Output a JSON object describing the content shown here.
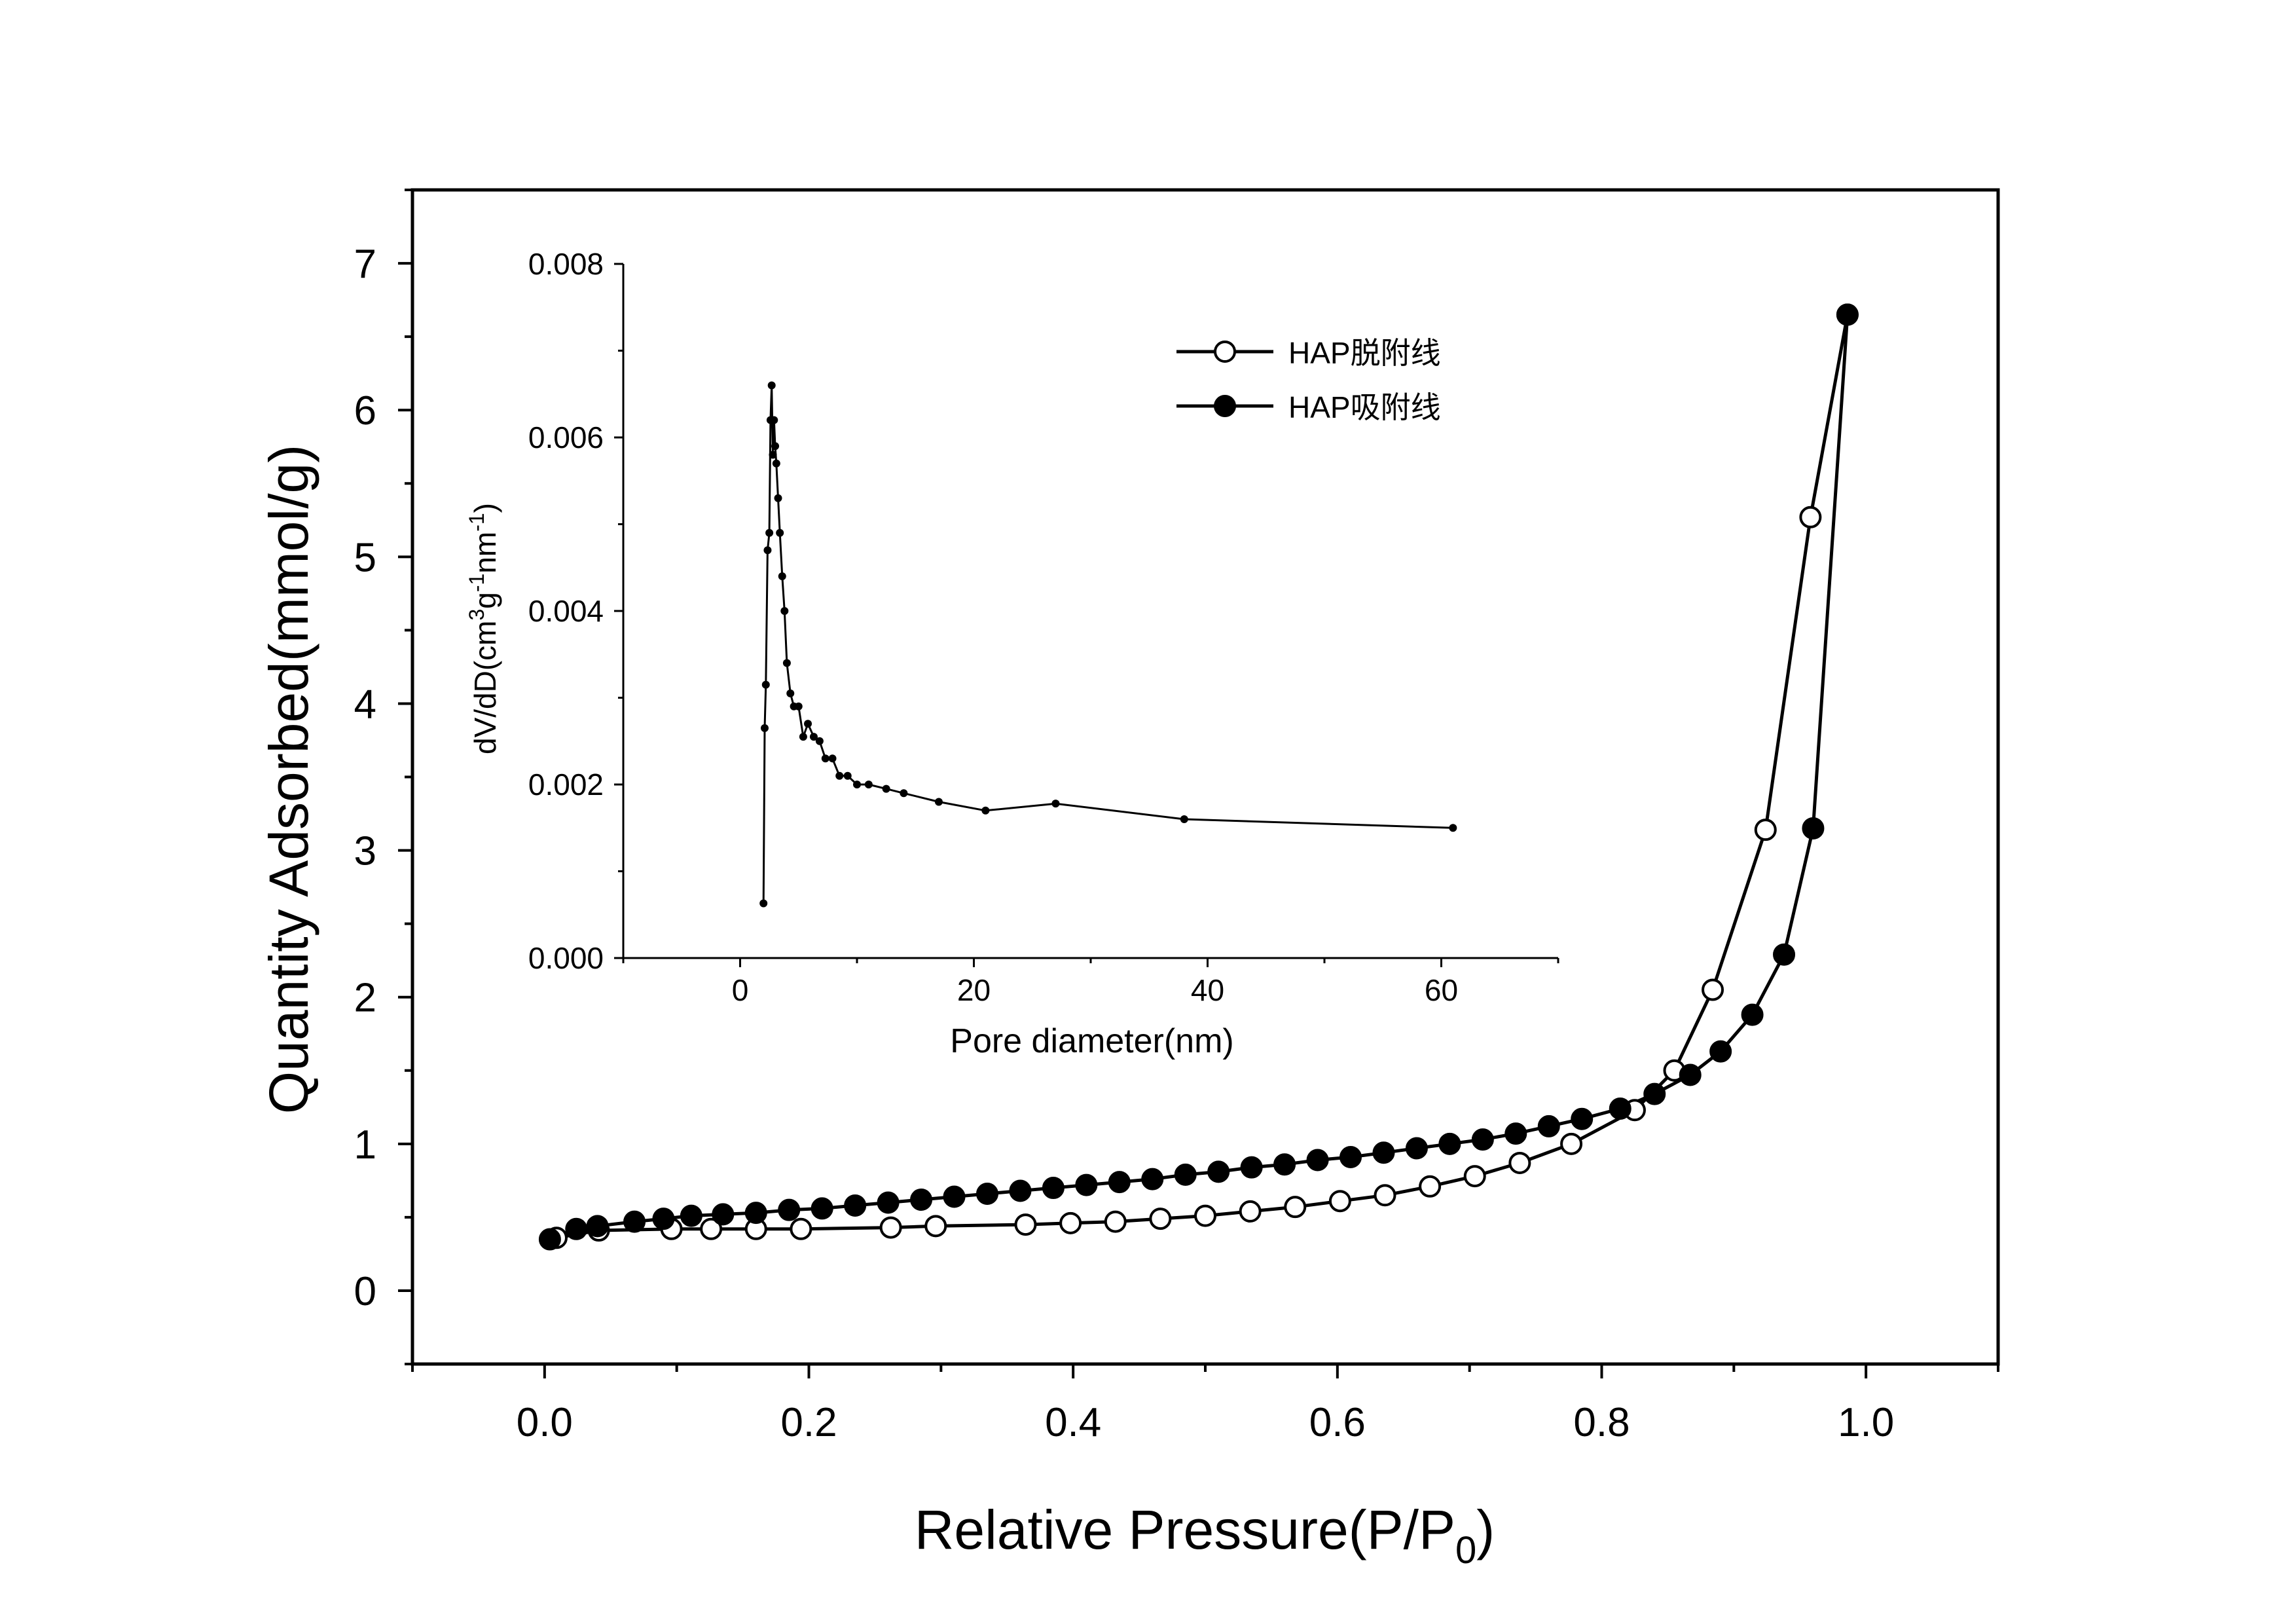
{
  "chart_data": [
    {
      "type": "scatter",
      "xlabel": "Relative Pressure(P/P",
      "xlabel_sub": "0",
      "xlabel_tail": ")",
      "ylabel": "Quantity Adsorbed(mmol/g)",
      "xlim": [
        -0.1,
        1.1
      ],
      "ylim": [
        -0.5,
        7.5
      ],
      "xticks": [
        0.0,
        0.2,
        0.4,
        0.6,
        0.8,
        1.0
      ],
      "xtick_labels": [
        "0.0",
        "0.2",
        "0.4",
        "0.6",
        "0.8",
        "1.0"
      ],
      "yticks": [
        0,
        1,
        2,
        3,
        4,
        5,
        6,
        7
      ],
      "ytick_labels": [
        "0",
        "1",
        "2",
        "3",
        "4",
        "5",
        "6",
        "7"
      ],
      "grid": false,
      "legend_position": "top-right of inset",
      "series": [
        {
          "name": "HAP脱附线",
          "marker": "open-circle",
          "color": "#000000",
          "x": [
            0.009,
            0.041,
            0.096,
            0.126,
            0.16,
            0.194,
            0.262,
            0.296,
            0.364,
            0.398,
            0.432,
            0.466,
            0.5,
            0.534,
            0.568,
            0.602,
            0.636,
            0.67,
            0.704,
            0.738,
            0.777,
            0.825,
            0.855,
            0.884,
            0.924,
            0.958,
            0.986
          ],
          "y": [
            0.36,
            0.41,
            0.42,
            0.42,
            0.42,
            0.42,
            0.43,
            0.44,
            0.45,
            0.46,
            0.47,
            0.49,
            0.51,
            0.54,
            0.57,
            0.61,
            0.65,
            0.71,
            0.78,
            0.87,
            1.0,
            1.23,
            1.5,
            2.05,
            3.14,
            5.27,
            6.65
          ]
        },
        {
          "name": "HAP吸附线",
          "marker": "filled-circle",
          "color": "#000000",
          "x": [
            0.004,
            0.024,
            0.04,
            0.068,
            0.09,
            0.111,
            0.135,
            0.16,
            0.185,
            0.21,
            0.235,
            0.26,
            0.285,
            0.31,
            0.335,
            0.36,
            0.385,
            0.41,
            0.435,
            0.46,
            0.485,
            0.51,
            0.535,
            0.56,
            0.585,
            0.61,
            0.635,
            0.66,
            0.685,
            0.71,
            0.735,
            0.76,
            0.785,
            0.814,
            0.84,
            0.867,
            0.89,
            0.914,
            0.938,
            0.96,
            0.986
          ],
          "y": [
            0.35,
            0.42,
            0.44,
            0.47,
            0.49,
            0.51,
            0.52,
            0.53,
            0.55,
            0.56,
            0.58,
            0.6,
            0.62,
            0.64,
            0.66,
            0.68,
            0.7,
            0.72,
            0.74,
            0.76,
            0.79,
            0.81,
            0.84,
            0.86,
            0.89,
            0.91,
            0.94,
            0.97,
            1.0,
            1.03,
            1.07,
            1.12,
            1.17,
            1.24,
            1.34,
            1.47,
            1.63,
            1.88,
            2.29,
            3.15,
            6.65
          ]
        }
      ]
    },
    {
      "type": "line",
      "role": "inset",
      "xlabel": "Pore diameter(nm)",
      "ylabel_parts": [
        "dV/dD(cm",
        "3",
        "g",
        "-1",
        "nm",
        "-1",
        ")"
      ],
      "xlim": [
        -10,
        70
      ],
      "ylim": [
        0,
        0.008
      ],
      "xticks": [
        0,
        20,
        40,
        60
      ],
      "xtick_labels": [
        "0",
        "20",
        "40",
        "60"
      ],
      "yticks": [
        0,
        0.002,
        0.004,
        0.006,
        0.008
      ],
      "ytick_labels": [
        "0.000",
        "0.002",
        "0.004",
        "0.006",
        "0.008"
      ],
      "grid": false,
      "series": [
        {
          "marker": "small-filled-dot",
          "color": "#000000",
          "x": [
            2.0,
            2.1,
            2.2,
            2.35,
            2.5,
            2.6,
            2.7,
            2.8,
            2.9,
            3.0,
            3.1,
            3.25,
            3.4,
            3.6,
            3.8,
            4.0,
            4.3,
            4.6,
            5.0,
            5.4,
            5.8,
            6.3,
            6.8,
            7.3,
            7.9,
            8.5,
            9.2,
            10.0,
            11.0,
            12.5,
            14.0,
            17.0,
            21.0,
            27.0,
            38.0,
            61.0
          ],
          "y": [
            0.00063,
            0.00265,
            0.00315,
            0.0047,
            0.0049,
            0.0062,
            0.0066,
            0.0058,
            0.0062,
            0.0059,
            0.0057,
            0.0053,
            0.0049,
            0.0044,
            0.004,
            0.0034,
            0.00305,
            0.0029,
            0.0029,
            0.00255,
            0.0027,
            0.00255,
            0.0025,
            0.0023,
            0.0023,
            0.0021,
            0.0021,
            0.002,
            0.002,
            0.00195,
            0.0019,
            0.0018,
            0.0017,
            0.00178,
            0.0016,
            0.0015
          ]
        }
      ]
    }
  ]
}
